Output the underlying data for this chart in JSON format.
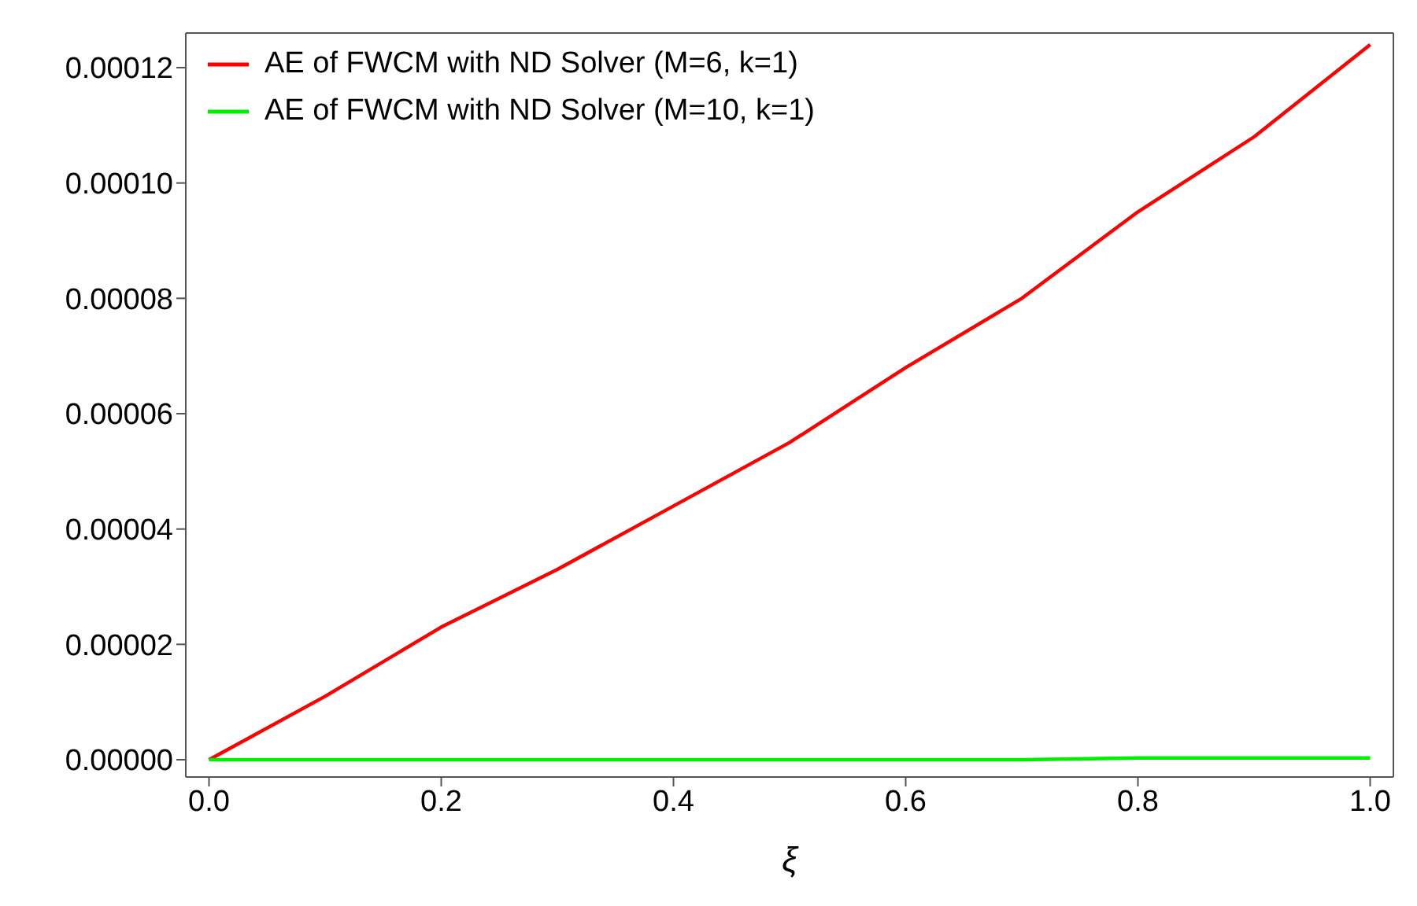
{
  "chart_data": {
    "type": "line",
    "xlabel": "ξ",
    "x": [
      0,
      0.1,
      0.2,
      0.3,
      0.4,
      0.5,
      0.6,
      0.7,
      0.8,
      0.9,
      1.0
    ],
    "series": [
      {
        "name": "AE of FWCM with ND Solver (M=6, k=1)",
        "color": "#ff0000",
        "values": [
          0,
          1.1e-05,
          2.3e-05,
          3.3e-05,
          4.4e-05,
          5.5e-05,
          6.8e-05,
          8e-05,
          9.5e-05,
          0.000108,
          0.000124
        ]
      },
      {
        "name": "AE of FWCM with ND Solver (M=10, k=1)",
        "color": "#00ee00",
        "values": [
          0,
          0,
          0,
          0,
          0,
          0,
          0,
          0,
          3e-07,
          3e-07,
          3e-07
        ]
      }
    ],
    "xlim": [
      -0.02,
      1.02
    ],
    "ylim": [
      -3e-06,
      0.000126
    ],
    "xticks": [
      {
        "value": 0,
        "label": "0.0"
      },
      0.2,
      0.4,
      0.6,
      0.8,
      {
        "value": 1,
        "label": "1.0"
      }
    ],
    "yticks": [
      {
        "value": 0,
        "label": "0.00000"
      },
      {
        "value": 2e-05,
        "label": "0.00002"
      },
      {
        "value": 4e-05,
        "label": "0.00004"
      },
      {
        "value": 6e-05,
        "label": "0.00006"
      },
      {
        "value": 8e-05,
        "label": "0.00008"
      },
      {
        "value": 0.0001,
        "label": "0.00010"
      },
      {
        "value": 0.00012,
        "label": "0.00012"
      }
    ],
    "grid": false,
    "legend": "top left",
    "marker": "none",
    "line_style": "solid"
  }
}
